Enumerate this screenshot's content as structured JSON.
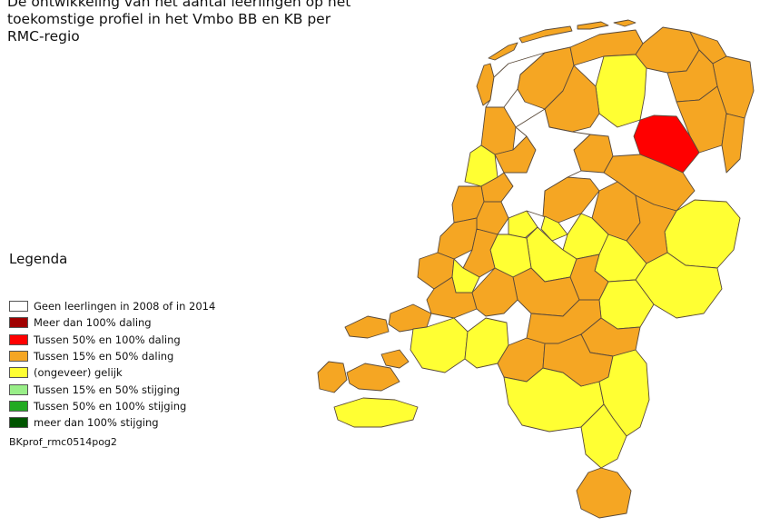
{
  "title_lines": [
    "De ontwikkeling van het aantal leerlingen op het",
    "toekomstige profiel in het Vmbo BB en KB per",
    "RMC-regio"
  ],
  "legend": {
    "heading": "Legenda",
    "items": [
      {
        "label": "Geen leerlingen in 2008 of in 2014",
        "color": "#ffffff"
      },
      {
        "label": "Meer dan 100% daling",
        "color": "#a00000"
      },
      {
        "label": "Tussen 50% en 100% daling",
        "color": "#ff0000"
      },
      {
        "label": "Tussen 15% en 50% daling",
        "color": "#f5a623"
      },
      {
        "label": "(ongeveer) gelijk",
        "color": "#ffff33"
      },
      {
        "label": "Tussen 15% en 50% stijging",
        "color": "#99ee88"
      },
      {
        "label": "Tussen 50% en 100% stijging",
        "color": "#22aa22"
      },
      {
        "label": "meer dan 100% stijging",
        "color": "#005500"
      }
    ],
    "code": "BKprof_rmc0514pog2"
  },
  "colors": {
    "orange": "#f5a623",
    "yellow": "#ffff33",
    "red": "#ff0000",
    "white": "#ffffff",
    "border": "#5a4a3a"
  }
}
